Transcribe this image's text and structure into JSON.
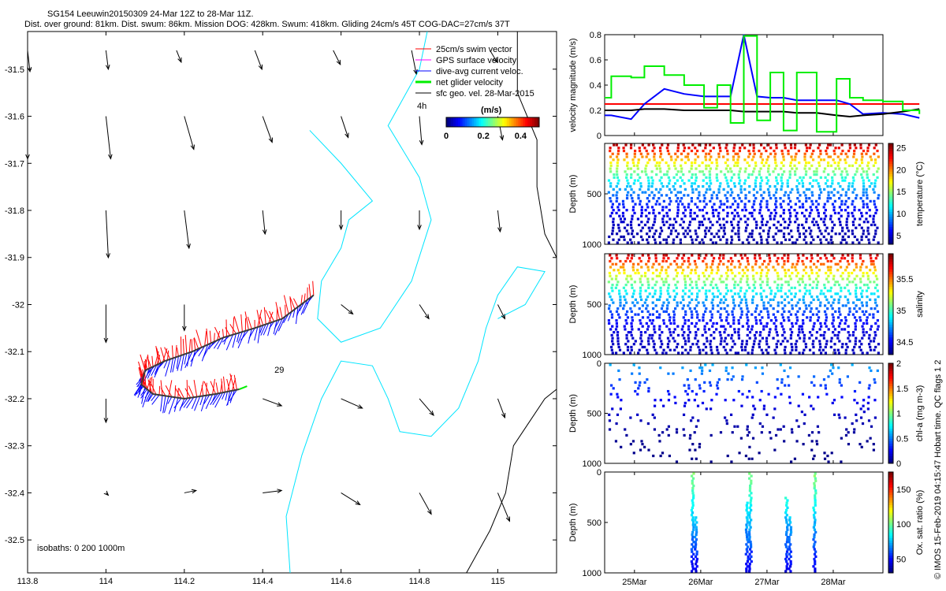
{
  "header": {
    "title": "SG154 Leeuwin20150309 24-Mar 12Z to 28-Mar 11Z.",
    "subtitle": "Dist. over ground: 81km. Dist. swum: 86km. Mission DOG: 428km. Swum: 418km. Gliding 24cm/s 45T COG-DAC=27cm/s 37T"
  },
  "side_label": "© IMOS 15-Feb-2019 04:15:47 Hobart time. QC flags 1  2",
  "chart_data": [
    {
      "id": "map",
      "type": "scatter",
      "x_ticks": [
        "113.8",
        "114",
        "114.2",
        "114.4",
        "114.6",
        "114.8",
        "115"
      ],
      "y_ticks": [
        "-31.5",
        "-31.6",
        "-31.7",
        "-31.8",
        "-31.9",
        "-32",
        "-32.1",
        "-32.2",
        "-32.3",
        "-32.4",
        "-32.5"
      ],
      "xlim": [
        113.8,
        115.15
      ],
      "ylim": [
        -32.57,
        -31.42
      ],
      "legend": {
        "placement": "top-right",
        "entries": [
          {
            "label": "25cm/s swim vector",
            "color": "#ff0000"
          },
          {
            "label": "GPS surface velocity",
            "color": "#ff00ff"
          },
          {
            "label": "dive-avg current veloc.",
            "color": "#0000ff"
          },
          {
            "label": "net glider velocity",
            "color": "#00ee00"
          },
          {
            "label": "sfc geo. vel. 28-Mar-2015",
            "color": "#000000"
          }
        ],
        "scale_note": "4h"
      },
      "colorbar": {
        "label": "(m/s)",
        "ticks": [
          "0",
          "0.2",
          "0.4"
        ],
        "range": [
          0,
          0.5
        ]
      },
      "annotations": [
        "29",
        "isobaths: 0   200  1000m"
      ],
      "isobath_colors": {
        "200m": "#00e5ff",
        "1000m": "#000000"
      },
      "track": [
        [
          114.53,
          -31.98
        ],
        [
          114.45,
          -32.03
        ],
        [
          114.38,
          -32.05
        ],
        [
          114.3,
          -32.07
        ],
        [
          114.22,
          -32.1
        ],
        [
          114.15,
          -32.12
        ],
        [
          114.1,
          -32.14
        ],
        [
          114.09,
          -32.17
        ],
        [
          114.12,
          -32.19
        ],
        [
          114.2,
          -32.2
        ],
        [
          114.28,
          -32.19
        ],
        [
          114.34,
          -32.18
        ]
      ],
      "surface_velocity_grid": [
        {
          "lon": 113.8,
          "lat": -31.46,
          "u": 0.01,
          "v": -0.09
        },
        {
          "lon": 114.0,
          "lat": -31.46,
          "u": 0.01,
          "v": -0.08
        },
        {
          "lon": 114.18,
          "lat": -31.46,
          "u": 0.02,
          "v": -0.05
        },
        {
          "lon": 114.38,
          "lat": -31.46,
          "u": 0.03,
          "v": -0.08
        },
        {
          "lon": 114.58,
          "lat": -31.46,
          "u": 0.03,
          "v": -0.06
        },
        {
          "lon": 114.78,
          "lat": -31.46,
          "u": 0.02,
          "v": -0.1
        },
        {
          "lon": 114.98,
          "lat": -31.46,
          "u": 0.03,
          "v": -0.05
        },
        {
          "lon": 113.8,
          "lat": -31.6,
          "u": 0.0,
          "v": -0.18
        },
        {
          "lon": 114.0,
          "lat": -31.6,
          "u": 0.02,
          "v": -0.18
        },
        {
          "lon": 114.2,
          "lat": -31.6,
          "u": 0.04,
          "v": -0.14
        },
        {
          "lon": 114.4,
          "lat": -31.6,
          "u": 0.04,
          "v": -0.11
        },
        {
          "lon": 114.6,
          "lat": -31.6,
          "u": 0.03,
          "v": -0.09
        },
        {
          "lon": 114.8,
          "lat": -31.6,
          "u": 0.01,
          "v": -0.12
        },
        {
          "lon": 115.0,
          "lat": -31.6,
          "u": 0.02,
          "v": -0.1
        },
        {
          "lon": 114.0,
          "lat": -31.8,
          "u": 0.01,
          "v": -0.2
        },
        {
          "lon": 114.2,
          "lat": -31.8,
          "u": 0.02,
          "v": -0.16
        },
        {
          "lon": 114.4,
          "lat": -31.8,
          "u": 0.01,
          "v": -0.1
        },
        {
          "lon": 114.6,
          "lat": -31.8,
          "u": 0.0,
          "v": -0.08
        },
        {
          "lon": 114.8,
          "lat": -31.8,
          "u": 0.0,
          "v": -0.08
        },
        {
          "lon": 115.0,
          "lat": -31.8,
          "u": 0.01,
          "v": -0.09
        },
        {
          "lon": 114.0,
          "lat": -32.0,
          "u": 0.0,
          "v": -0.16
        },
        {
          "lon": 114.2,
          "lat": -32.0,
          "u": 0.0,
          "v": -0.11
        },
        {
          "lon": 114.6,
          "lat": -32.0,
          "u": 0.05,
          "v": -0.04
        },
        {
          "lon": 114.8,
          "lat": -32.0,
          "u": 0.04,
          "v": -0.06
        },
        {
          "lon": 115.0,
          "lat": -32.0,
          "u": 0.03,
          "v": -0.06
        },
        {
          "lon": 114.0,
          "lat": -32.2,
          "u": 0.0,
          "v": -0.1
        },
        {
          "lon": 114.4,
          "lat": -32.2,
          "u": 0.08,
          "v": -0.03
        },
        {
          "lon": 114.6,
          "lat": -32.2,
          "u": 0.09,
          "v": -0.04
        },
        {
          "lon": 114.8,
          "lat": -32.2,
          "u": 0.06,
          "v": -0.07
        },
        {
          "lon": 115.0,
          "lat": -32.2,
          "u": 0.03,
          "v": -0.08
        },
        {
          "lon": 114.0,
          "lat": -32.4,
          "u": 0.01,
          "v": -0.01
        },
        {
          "lon": 114.2,
          "lat": -32.4,
          "u": 0.05,
          "v": 0.01
        },
        {
          "lon": 114.4,
          "lat": -32.4,
          "u": 0.08,
          "v": 0.01
        },
        {
          "lon": 114.6,
          "lat": -32.4,
          "u": 0.08,
          "v": -0.05
        },
        {
          "lon": 114.8,
          "lat": -32.4,
          "u": 0.05,
          "v": -0.09
        },
        {
          "lon": 115.0,
          "lat": -32.4,
          "u": 0.05,
          "v": -0.12
        }
      ]
    },
    {
      "id": "velocity",
      "type": "line",
      "ylabel": "velocity magnitude (m/s)",
      "y_ticks": [
        "0",
        "0.2",
        "0.4",
        "0.6",
        "0.8"
      ],
      "ylim": [
        0,
        0.8
      ],
      "x": [
        0,
        0.1,
        0.4,
        0.6,
        0.9,
        1.2,
        1.5,
        1.7,
        1.9,
        2.1,
        2.3,
        2.5,
        2.7,
        2.9,
        3.2,
        3.5,
        3.7,
        3.9,
        4.2,
        4.5,
        4.75
      ],
      "series": [
        {
          "color": "#ff0000",
          "values": [
            0.25,
            0.25,
            0.25,
            0.25,
            0.25,
            0.25,
            0.25,
            0.25,
            0.25,
            0.25,
            0.25,
            0.25,
            0.25,
            0.25,
            0.25,
            0.25,
            0.25,
            0.25,
            0.25,
            0.25,
            0.25
          ]
        },
        {
          "color": "#0000ff",
          "values": [
            0.16,
            0.16,
            0.13,
            0.25,
            0.37,
            0.33,
            0.31,
            0.31,
            0.31,
            0.8,
            0.31,
            0.3,
            0.3,
            0.28,
            0.28,
            0.28,
            0.25,
            0.17,
            0.18,
            0.17,
            0.14
          ]
        },
        {
          "color": "#000000",
          "values": [
            0.2,
            0.2,
            0.2,
            0.21,
            0.21,
            0.2,
            0.2,
            0.2,
            0.2,
            0.19,
            0.19,
            0.19,
            0.19,
            0.18,
            0.18,
            0.16,
            0.15,
            0.16,
            0.17,
            0.19,
            0.21
          ]
        },
        {
          "color": "#00ee00",
          "values": [
            0.3,
            0.47,
            0.46,
            0.55,
            0.48,
            0.4,
            0.22,
            0.4,
            0.1,
            0.79,
            0.12,
            0.5,
            0.04,
            0.5,
            0.03,
            0.45,
            0.3,
            0.28,
            0.27,
            0.2,
            0.17
          ]
        }
      ]
    },
    {
      "id": "temperature",
      "type": "scatter",
      "ylabel": "Depth (m)",
      "y_ticks": [
        "500",
        "1000"
      ],
      "ylim": [
        1000,
        0
      ],
      "colorbar_label": "temperature (°C)",
      "colorbar_ticks": [
        "5",
        "10",
        "15",
        "20",
        "25"
      ],
      "colorbar_range": [
        3,
        26
      ],
      "dives": 38,
      "max_depth": 1000,
      "surface_value": 25,
      "deep_value": 4,
      "min_depth": 0
    },
    {
      "id": "salinity",
      "type": "scatter",
      "ylabel": "Depth (m)",
      "y_ticks": [
        "500",
        "1000"
      ],
      "ylim": [
        1000,
        0
      ],
      "colorbar_label": "salinity",
      "colorbar_ticks": [
        "34.5",
        "35",
        "35.5"
      ],
      "colorbar_range": [
        34.3,
        35.9
      ],
      "dives": 38,
      "max_depth": 1000,
      "surface_value": 35.8,
      "deep_value": 34.4,
      "min_depth": 0
    },
    {
      "id": "chla",
      "type": "scatter",
      "ylabel": "Depth (m)",
      "y_ticks": [
        "0",
        "500",
        "1000"
      ],
      "ylim": [
        1000,
        0
      ],
      "colorbar_label": "chl-a (mg m-3)",
      "colorbar_ticks": [
        "0",
        "0.5",
        "1",
        "1.5",
        "2"
      ],
      "colorbar_range": [
        0,
        2
      ],
      "dives": 38,
      "max_depth": 1000,
      "surface_value": 0.6,
      "deep_value": 0.02,
      "min_depth": 0
    },
    {
      "id": "oxygen",
      "type": "scatter",
      "ylabel": "Depth (m)",
      "y_ticks": [
        "0",
        "500",
        "1000"
      ],
      "ylim": [
        1000,
        0
      ],
      "colorbar_label": "Ox. sat. ratio (%)",
      "colorbar_ticks": [
        "50",
        "100",
        "150"
      ],
      "colorbar_range": [
        30,
        175
      ],
      "x_ticks": [
        "25Mar",
        "26Mar",
        "27Mar",
        "28Mar"
      ],
      "x_tick_days": [
        1,
        2,
        3,
        4
      ],
      "xlim": [
        0.55,
        4.75
      ],
      "dive_columns": [
        {
          "x": 1.88,
          "top": 0,
          "bottom": 1000
        },
        {
          "x": 1.93,
          "top": 450,
          "bottom": 1000
        },
        {
          "x": 2.75,
          "top": 0,
          "bottom": 1000
        },
        {
          "x": 2.7,
          "top": 300,
          "bottom": 1000
        },
        {
          "x": 3.3,
          "top": 250,
          "bottom": 1000
        },
        {
          "x": 3.35,
          "top": 450,
          "bottom": 1000
        },
        {
          "x": 3.72,
          "top": 0,
          "bottom": 1000
        }
      ]
    }
  ]
}
